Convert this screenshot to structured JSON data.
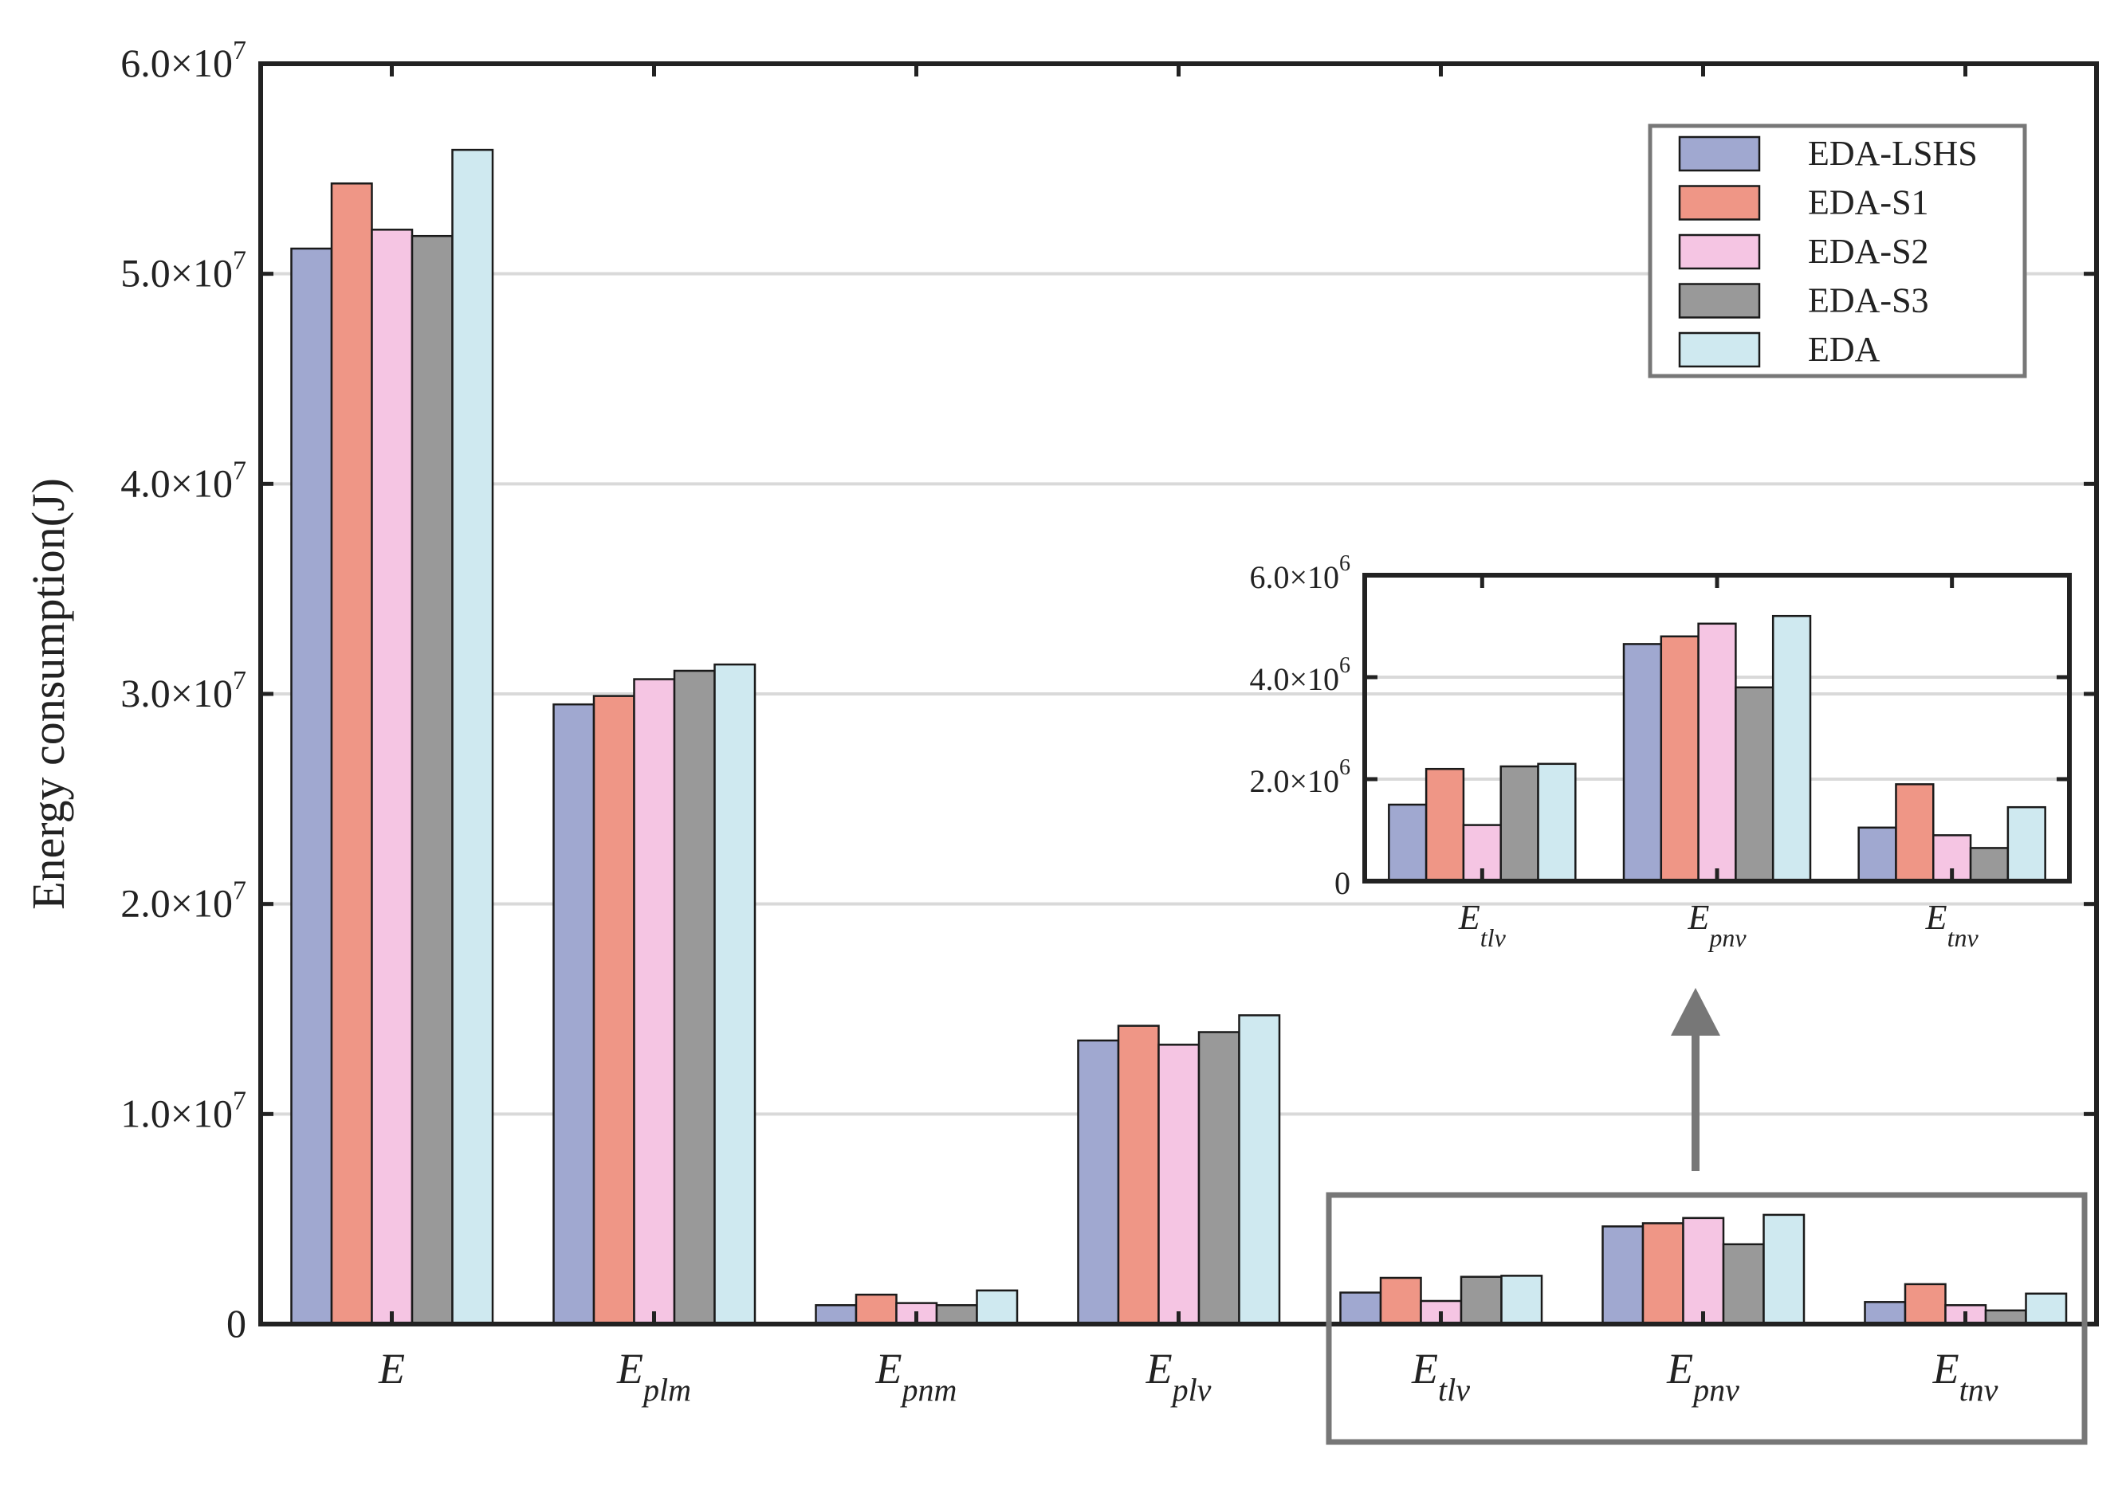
{
  "chart_data": {
    "type": "bar",
    "title": "",
    "xlabel": "",
    "ylabel": "Energy consumption(J)",
    "ylim": [
      0,
      60000000
    ],
    "grid": true,
    "legend_position": "top-right",
    "y_ticks": [
      {
        "value": 0,
        "mantissa": "0",
        "exp": ""
      },
      {
        "value": 10000000,
        "mantissa": "1.0×10",
        "exp": "7"
      },
      {
        "value": 20000000,
        "mantissa": "2.0×10",
        "exp": "7"
      },
      {
        "value": 30000000,
        "mantissa": "3.0×10",
        "exp": "7"
      },
      {
        "value": 40000000,
        "mantissa": "4.0×10",
        "exp": "7"
      },
      {
        "value": 50000000,
        "mantissa": "5.0×10",
        "exp": "7"
      },
      {
        "value": 60000000,
        "mantissa": "6.0×10",
        "exp": "7"
      }
    ],
    "categories": [
      {
        "base": "E",
        "sub": ""
      },
      {
        "base": "E",
        "sub": "plm"
      },
      {
        "base": "E",
        "sub": "pnm"
      },
      {
        "base": "E",
        "sub": "plv"
      },
      {
        "base": "E",
        "sub": "tlv"
      },
      {
        "base": "E",
        "sub": "pnv"
      },
      {
        "base": "E",
        "sub": "tnv"
      }
    ],
    "series": [
      {
        "name": "EDA-LSHS",
        "color": "#a0a8d0",
        "values": [
          51200000,
          29500000,
          900000,
          13500000,
          1500000,
          4650000,
          1050000
        ]
      },
      {
        "name": "EDA-S1",
        "color": "#ef9686",
        "values": [
          54300000,
          29900000,
          1400000,
          14200000,
          2200000,
          4800000,
          1900000
        ]
      },
      {
        "name": "EDA-S2",
        "color": "#f5c5e3",
        "values": [
          52100000,
          30700000,
          1000000,
          13300000,
          1100000,
          5050000,
          900000
        ]
      },
      {
        "name": "EDA-S3",
        "color": "#999999",
        "values": [
          51800000,
          31100000,
          900000,
          13900000,
          2250000,
          3800000,
          650000
        ]
      },
      {
        "name": "EDA",
        "color": "#cfe9f0",
        "values": [
          55900000,
          31400000,
          1600000,
          14700000,
          2300000,
          5200000,
          1450000
        ]
      }
    ],
    "inset": {
      "ylim": [
        0,
        6000000
      ],
      "category_indices": [
        4,
        5,
        6
      ],
      "y_ticks": [
        {
          "value": 0,
          "mantissa": "0",
          "exp": ""
        },
        {
          "value": 2000000,
          "mantissa": "2.0×10",
          "exp": "6"
        },
        {
          "value": 4000000,
          "mantissa": "4.0×10",
          "exp": "6"
        },
        {
          "value": 6000000,
          "mantissa": "6.0×10",
          "exp": "6"
        }
      ]
    }
  }
}
